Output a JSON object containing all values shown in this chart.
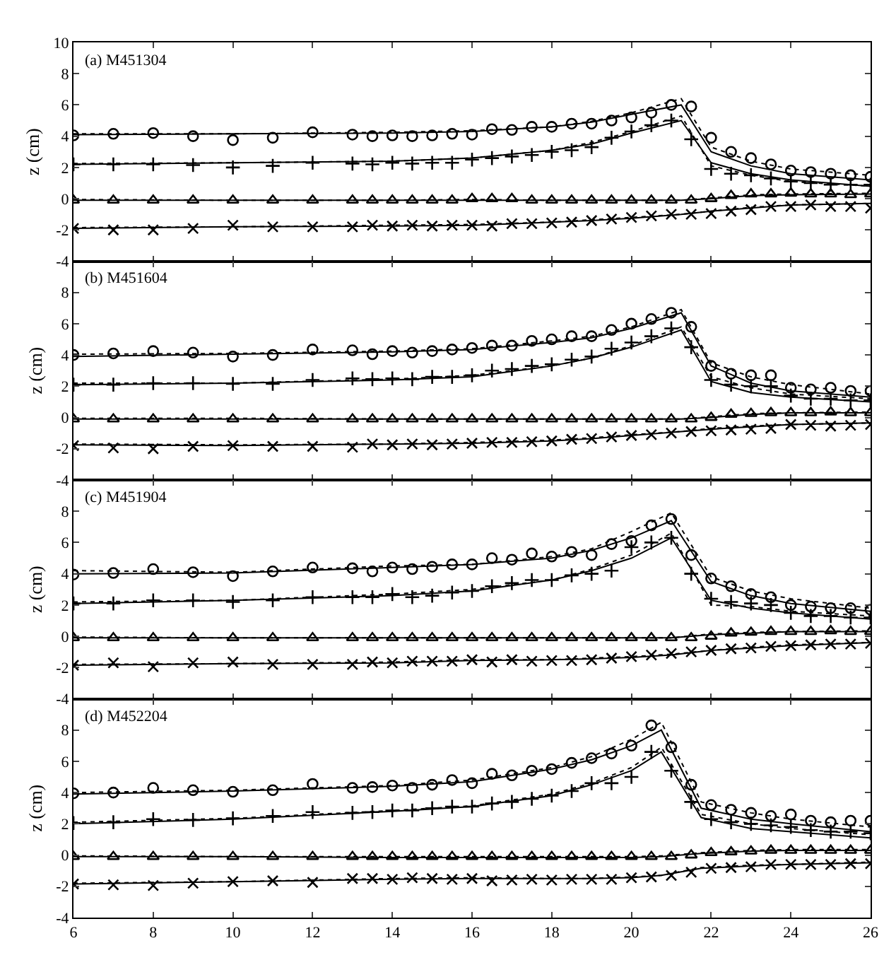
{
  "chart_data": [
    {
      "type": "scatter",
      "title": "(a) M451304",
      "ylabel": "z (cm)",
      "xlim": [
        6,
        26
      ],
      "xticks": [
        6,
        8,
        10,
        12,
        14,
        16,
        18,
        20,
        22,
        24,
        26
      ],
      "ylim": [
        -4,
        10
      ],
      "yticks": [
        -4,
        -2,
        0,
        2,
        4,
        6,
        8,
        10
      ],
      "tick_labels": "y",
      "x": [
        6,
        7,
        8,
        9,
        10,
        11,
        12,
        13,
        13.5,
        14,
        14.5,
        15,
        15.5,
        16,
        16.5,
        17,
        17.5,
        18,
        18.5,
        19,
        19.5,
        20,
        20.5,
        21,
        21.5,
        22,
        22.5,
        23,
        23.5,
        24,
        24.5,
        25,
        25.5,
        26
      ],
      "series": [
        {
          "type": "scatter",
          "marker": "circle",
          "color": "#000000",
          "values": [
            4.05,
            4.15,
            4.2,
            4.0,
            3.75,
            3.9,
            4.25,
            4.1,
            4.0,
            4.05,
            4.0,
            4.05,
            4.15,
            4.1,
            4.45,
            4.4,
            4.6,
            4.6,
            4.8,
            4.8,
            5.0,
            5.2,
            5.5,
            6.0,
            5.9,
            3.9,
            3.0,
            2.6,
            2.2,
            1.8,
            1.7,
            1.6,
            1.5,
            1.4
          ]
        },
        {
          "type": "scatter",
          "marker": "cross",
          "color": "#000000",
          "values": [
            2.2,
            2.2,
            2.2,
            2.15,
            2.0,
            2.1,
            2.3,
            2.25,
            2.2,
            2.3,
            2.25,
            2.3,
            2.3,
            2.5,
            2.6,
            2.7,
            2.8,
            3.0,
            3.1,
            3.3,
            3.9,
            4.3,
            4.7,
            5.0,
            3.8,
            1.9,
            1.6,
            1.5,
            1.3,
            1.1,
            1.0,
            0.9,
            0.9,
            0.9
          ]
        },
        {
          "type": "scatter",
          "marker": "triangle",
          "color": "#000000",
          "values": [
            -0.1,
            -0.1,
            -0.1,
            -0.1,
            -0.1,
            -0.1,
            -0.1,
            -0.1,
            -0.1,
            -0.1,
            -0.1,
            -0.1,
            -0.1,
            0.0,
            0.0,
            0.0,
            -0.1,
            -0.1,
            -0.1,
            -0.1,
            -0.1,
            -0.1,
            -0.1,
            -0.1,
            -0.1,
            0.0,
            0.2,
            0.3,
            0.3,
            0.35,
            0.3,
            0.3,
            0.25,
            0.3
          ]
        },
        {
          "type": "scatter",
          "marker": "x",
          "color": "#000000",
          "values": [
            -1.9,
            -2.0,
            -2.0,
            -1.9,
            -1.7,
            -1.8,
            -1.8,
            -1.8,
            -1.7,
            -1.75,
            -1.7,
            -1.75,
            -1.7,
            -1.7,
            -1.75,
            -1.6,
            -1.6,
            -1.55,
            -1.5,
            -1.4,
            -1.3,
            -1.2,
            -1.1,
            -1.0,
            -1.0,
            -0.95,
            -0.8,
            -0.7,
            -0.5,
            -0.5,
            -0.4,
            -0.5,
            -0.5,
            -0.6
          ]
        },
        {
          "type": "line",
          "line_style": "solid",
          "color": "#000000",
          "x": [
            6,
            10,
            14,
            16,
            18,
            19,
            20,
            21.25,
            22,
            23,
            24,
            26
          ],
          "values": [
            4.1,
            4.15,
            4.2,
            4.3,
            4.6,
            4.9,
            5.4,
            6.0,
            3.0,
            2.1,
            1.6,
            1.2
          ]
        },
        {
          "type": "line",
          "line_style": "dotted",
          "color": "#000000",
          "x": [
            6,
            10,
            14,
            16,
            18,
            19,
            20,
            21.25,
            22,
            23,
            24,
            26
          ],
          "values": [
            4.15,
            4.15,
            4.25,
            4.35,
            4.6,
            4.95,
            5.5,
            6.4,
            3.3,
            2.4,
            1.9,
            1.5
          ]
        },
        {
          "type": "line",
          "line_style": "solid",
          "color": "#000000",
          "x": [
            6,
            10,
            14,
            16,
            18,
            19,
            20,
            21.25,
            22,
            23,
            24,
            26
          ],
          "values": [
            2.2,
            2.3,
            2.4,
            2.6,
            3.1,
            3.5,
            4.2,
            5.0,
            2.3,
            1.6,
            1.2,
            0.8
          ]
        },
        {
          "type": "line",
          "line_style": "dotted",
          "color": "#000000",
          "x": [
            6,
            10,
            14,
            16,
            18,
            19,
            20,
            21.25,
            22,
            23,
            24,
            26
          ],
          "values": [
            2.25,
            2.3,
            2.4,
            2.6,
            3.1,
            3.6,
            4.3,
            5.3,
            2.1,
            1.5,
            1.1,
            0.8
          ]
        },
        {
          "type": "line",
          "line_style": "solid",
          "color": "#000000",
          "x": [
            6,
            10,
            14,
            16,
            18,
            19,
            20,
            21.25,
            22,
            23,
            24,
            26
          ],
          "values": [
            -0.1,
            -0.1,
            -0.1,
            -0.1,
            -0.1,
            -0.1,
            -0.1,
            -0.1,
            0.0,
            0.2,
            0.25,
            0.3
          ]
        },
        {
          "type": "line",
          "line_style": "dotted",
          "color": "#000000",
          "x": [
            6,
            10,
            14,
            16,
            18,
            19,
            20,
            21.25,
            22,
            23,
            24,
            26
          ],
          "values": [
            -0.05,
            -0.1,
            -0.1,
            -0.05,
            -0.1,
            -0.1,
            -0.1,
            -0.1,
            0.05,
            0.25,
            0.3,
            0.35
          ]
        },
        {
          "type": "line",
          "line_style": "solid",
          "color": "#000000",
          "x": [
            6,
            10,
            14,
            16,
            18,
            19,
            20,
            21.25,
            22,
            23,
            24,
            26
          ],
          "values": [
            -1.9,
            -1.8,
            -1.75,
            -1.7,
            -1.5,
            -1.4,
            -1.25,
            -1.0,
            -0.8,
            -0.6,
            -0.4,
            -0.3
          ]
        },
        {
          "type": "line",
          "line_style": "dotted",
          "color": "#000000",
          "x": [
            6,
            10,
            14,
            16,
            18,
            19,
            20,
            21.25,
            22,
            23,
            24,
            26
          ],
          "values": [
            -1.85,
            -1.8,
            -1.7,
            -1.65,
            -1.5,
            -1.35,
            -1.2,
            -1.0,
            -0.8,
            -0.55,
            -0.4,
            -0.3
          ]
        }
      ]
    },
    {
      "type": "scatter",
      "title": "(b) M451604",
      "ylabel": "z (cm)",
      "xlim": [
        6,
        26
      ],
      "xticks": [
        6,
        8,
        10,
        12,
        14,
        16,
        18,
        20,
        22,
        24,
        26
      ],
      "ylim": [
        -4,
        10
      ],
      "yticks": [
        -4,
        -2,
        0,
        2,
        4,
        6,
        8
      ],
      "tick_labels": "y",
      "x": [
        6,
        7,
        8,
        9,
        10,
        11,
        12,
        13,
        13.5,
        14,
        14.5,
        15,
        15.5,
        16,
        16.5,
        17,
        17.5,
        18,
        18.5,
        19,
        19.5,
        20,
        20.5,
        21,
        21.5,
        22,
        22.5,
        23,
        23.5,
        24,
        24.5,
        25,
        25.5,
        26
      ],
      "series": [
        {
          "type": "scatter",
          "marker": "circle",
          "color": "#000000",
          "values": [
            4.0,
            4.1,
            4.25,
            4.15,
            3.9,
            4.0,
            4.35,
            4.3,
            4.05,
            4.25,
            4.15,
            4.25,
            4.35,
            4.45,
            4.6,
            4.6,
            4.9,
            5.0,
            5.2,
            5.2,
            5.6,
            6.0,
            6.3,
            6.7,
            5.8,
            3.3,
            2.8,
            2.7,
            2.7,
            1.9,
            1.8,
            1.9,
            1.7,
            1.7
          ]
        },
        {
          "type": "scatter",
          "marker": "cross",
          "color": "#000000",
          "values": [
            2.1,
            2.1,
            2.2,
            2.2,
            2.15,
            2.15,
            2.4,
            2.5,
            2.45,
            2.5,
            2.45,
            2.6,
            2.6,
            2.7,
            3.0,
            3.1,
            3.3,
            3.4,
            3.7,
            3.9,
            4.4,
            4.8,
            5.2,
            5.7,
            4.5,
            2.4,
            2.1,
            2.0,
            2.0,
            1.4,
            1.2,
            1.2,
            1.1,
            1.1
          ]
        },
        {
          "type": "scatter",
          "marker": "triangle",
          "color": "#000000",
          "values": [
            -0.1,
            -0.1,
            -0.1,
            -0.1,
            -0.1,
            -0.1,
            -0.1,
            -0.1,
            -0.1,
            -0.1,
            -0.1,
            -0.1,
            -0.1,
            -0.1,
            -0.1,
            -0.1,
            -0.1,
            -0.1,
            -0.1,
            -0.1,
            -0.1,
            -0.1,
            -0.1,
            -0.1,
            -0.1,
            0.0,
            0.2,
            0.25,
            0.3,
            0.3,
            0.3,
            0.35,
            0.3,
            0.3
          ]
        },
        {
          "type": "scatter",
          "marker": "x",
          "color": "#000000",
          "values": [
            -1.8,
            -1.95,
            -2.0,
            -1.85,
            -1.8,
            -1.85,
            -1.85,
            -1.9,
            -1.7,
            -1.75,
            -1.7,
            -1.75,
            -1.7,
            -1.65,
            -1.6,
            -1.6,
            -1.55,
            -1.5,
            -1.4,
            -1.35,
            -1.25,
            -1.15,
            -1.1,
            -1.0,
            -0.9,
            -0.85,
            -0.8,
            -0.75,
            -0.7,
            -0.45,
            -0.5,
            -0.55,
            -0.5,
            -0.45
          ]
        },
        {
          "type": "line",
          "line_style": "solid",
          "color": "#000000",
          "x": [
            6,
            10,
            14,
            16,
            18,
            19,
            20,
            21.25,
            22,
            23,
            24,
            26
          ],
          "values": [
            3.9,
            4.05,
            4.2,
            4.35,
            4.8,
            5.1,
            5.7,
            6.7,
            3.3,
            2.2,
            1.7,
            1.3
          ]
        },
        {
          "type": "line",
          "line_style": "dotted",
          "color": "#000000",
          "x": [
            6,
            10,
            14,
            16,
            18,
            19,
            20,
            21.25,
            22,
            23,
            24,
            26
          ],
          "values": [
            4.05,
            4.1,
            4.25,
            4.4,
            4.9,
            5.2,
            5.8,
            6.9,
            3.5,
            2.6,
            2.1,
            1.5
          ]
        },
        {
          "type": "line",
          "line_style": "solid",
          "color": "#000000",
          "x": [
            6,
            10,
            14,
            16,
            18,
            19,
            20,
            21.25,
            22,
            23,
            24,
            26
          ],
          "values": [
            2.1,
            2.2,
            2.4,
            2.6,
            3.3,
            3.8,
            4.5,
            5.6,
            2.3,
            1.6,
            1.3,
            1.0
          ]
        },
        {
          "type": "line",
          "line_style": "dotted",
          "color": "#000000",
          "x": [
            6,
            10,
            14,
            16,
            18,
            19,
            20,
            21.25,
            22,
            23,
            24,
            26
          ],
          "values": [
            2.2,
            2.2,
            2.45,
            2.7,
            3.3,
            3.8,
            4.6,
            5.8,
            2.6,
            1.9,
            1.5,
            1.2
          ]
        },
        {
          "type": "line",
          "line_style": "solid",
          "color": "#000000",
          "x": [
            6,
            10,
            14,
            16,
            18,
            19,
            20,
            21.25,
            22,
            23,
            24,
            26
          ],
          "values": [
            -0.1,
            -0.1,
            -0.1,
            -0.1,
            -0.1,
            -0.1,
            -0.1,
            -0.1,
            0.0,
            0.2,
            0.3,
            0.3
          ]
        },
        {
          "type": "line",
          "line_style": "dotted",
          "color": "#000000",
          "x": [
            6,
            10,
            14,
            16,
            18,
            19,
            20,
            21.25,
            22,
            23,
            24,
            26
          ],
          "values": [
            -0.05,
            -0.05,
            -0.1,
            -0.1,
            -0.1,
            -0.1,
            -0.1,
            -0.1,
            0.05,
            0.25,
            0.3,
            0.35
          ]
        },
        {
          "type": "line",
          "line_style": "solid",
          "color": "#000000",
          "x": [
            6,
            10,
            14,
            16,
            18,
            19,
            20,
            21.25,
            22,
            23,
            24,
            26
          ],
          "values": [
            -1.75,
            -1.8,
            -1.7,
            -1.65,
            -1.5,
            -1.35,
            -1.15,
            -0.9,
            -0.75,
            -0.6,
            -0.45,
            -0.35
          ]
        },
        {
          "type": "line",
          "line_style": "dotted",
          "color": "#000000",
          "x": [
            6,
            10,
            14,
            16,
            18,
            19,
            20,
            21.25,
            22,
            23,
            24,
            26
          ],
          "values": [
            -1.7,
            -1.75,
            -1.7,
            -1.6,
            -1.45,
            -1.3,
            -1.1,
            -0.9,
            -0.7,
            -0.55,
            -0.45,
            -0.35
          ]
        }
      ]
    },
    {
      "type": "scatter",
      "title": "(c) M451904",
      "ylabel": "z (cm)",
      "xlim": [
        6,
        26
      ],
      "xticks": [
        6,
        8,
        10,
        12,
        14,
        16,
        18,
        20,
        22,
        24,
        26
      ],
      "ylim": [
        -4,
        10
      ],
      "yticks": [
        -4,
        -2,
        0,
        2,
        4,
        6,
        8
      ],
      "tick_labels": "y",
      "x": [
        6,
        7,
        8,
        9,
        10,
        11,
        12,
        13,
        13.5,
        14,
        14.5,
        15,
        15.5,
        16,
        16.5,
        17,
        17.5,
        18,
        18.5,
        19,
        19.5,
        20,
        20.5,
        21,
        21.5,
        22,
        22.5,
        23,
        23.5,
        24,
        24.5,
        25,
        25.5,
        26
      ],
      "series": [
        {
          "type": "scatter",
          "marker": "circle",
          "color": "#000000",
          "values": [
            3.95,
            4.05,
            4.3,
            4.1,
            3.85,
            4.15,
            4.4,
            4.35,
            4.15,
            4.4,
            4.3,
            4.45,
            4.6,
            4.6,
            5.0,
            4.9,
            5.3,
            5.1,
            5.4,
            5.2,
            5.9,
            6.1,
            7.1,
            7.5,
            5.2,
            3.7,
            3.2,
            2.7,
            2.5,
            2.0,
            1.9,
            1.8,
            1.8,
            1.7
          ]
        },
        {
          "type": "scatter",
          "marker": "cross",
          "color": "#000000",
          "values": [
            2.1,
            2.1,
            2.3,
            2.3,
            2.2,
            2.3,
            2.5,
            2.5,
            2.5,
            2.7,
            2.5,
            2.6,
            2.8,
            2.9,
            3.2,
            3.4,
            3.6,
            3.6,
            3.9,
            4.0,
            4.2,
            5.7,
            6.0,
            6.3,
            4.0,
            2.4,
            2.2,
            2.1,
            2.0,
            1.5,
            1.3,
            1.3,
            1.2,
            1.2
          ]
        },
        {
          "type": "scatter",
          "marker": "triangle",
          "color": "#000000",
          "values": [
            -0.1,
            -0.1,
            -0.1,
            -0.1,
            -0.1,
            -0.1,
            -0.1,
            -0.1,
            -0.1,
            -0.1,
            -0.1,
            -0.1,
            -0.1,
            -0.1,
            -0.1,
            -0.1,
            -0.1,
            -0.1,
            -0.1,
            -0.1,
            -0.1,
            -0.1,
            -0.1,
            -0.1,
            -0.1,
            0.0,
            0.2,
            0.25,
            0.3,
            0.3,
            0.3,
            0.35,
            0.3,
            0.3
          ]
        },
        {
          "type": "scatter",
          "marker": "x",
          "color": "#000000",
          "values": [
            -1.85,
            -1.7,
            -1.95,
            -1.7,
            -1.65,
            -1.8,
            -1.8,
            -1.8,
            -1.65,
            -1.7,
            -1.6,
            -1.6,
            -1.6,
            -1.5,
            -1.65,
            -1.5,
            -1.6,
            -1.55,
            -1.55,
            -1.5,
            -1.4,
            -1.3,
            -1.2,
            -1.1,
            -1.0,
            -0.9,
            -0.8,
            -0.75,
            -0.65,
            -0.6,
            -0.55,
            -0.5,
            -0.5,
            -0.45
          ]
        },
        {
          "type": "line",
          "line_style": "solid",
          "color": "#000000",
          "x": [
            6,
            10,
            14,
            16,
            18,
            19,
            20,
            21,
            22,
            23,
            24,
            26
          ],
          "values": [
            4.0,
            4.05,
            4.4,
            4.6,
            5.0,
            5.5,
            6.3,
            7.4,
            3.5,
            2.6,
            2.1,
            1.6
          ]
        },
        {
          "type": "line",
          "line_style": "dotted",
          "color": "#000000",
          "x": [
            6,
            10,
            14,
            16,
            18,
            19,
            20,
            21,
            22,
            23,
            24,
            26
          ],
          "values": [
            4.2,
            4.1,
            4.5,
            4.6,
            5.1,
            5.6,
            6.7,
            7.9,
            3.8,
            2.9,
            2.4,
            1.8
          ]
        },
        {
          "type": "line",
          "line_style": "solid",
          "color": "#000000",
          "x": [
            6,
            10,
            14,
            16,
            18,
            19,
            20,
            21,
            22,
            23,
            24,
            26
          ],
          "values": [
            2.1,
            2.3,
            2.6,
            2.9,
            3.6,
            4.2,
            5.0,
            6.3,
            2.3,
            1.8,
            1.5,
            1.1
          ]
        },
        {
          "type": "line",
          "line_style": "dotted",
          "color": "#000000",
          "x": [
            6,
            10,
            14,
            16,
            18,
            19,
            20,
            21,
            22,
            23,
            24,
            26
          ],
          "values": [
            2.2,
            2.3,
            2.7,
            3.0,
            3.6,
            4.3,
            5.2,
            6.6,
            2.0,
            1.9,
            1.6,
            1.3
          ]
        },
        {
          "type": "line",
          "line_style": "solid",
          "color": "#000000",
          "x": [
            6,
            10,
            14,
            16,
            18,
            19,
            20,
            21,
            22,
            23,
            24,
            26
          ],
          "values": [
            -0.1,
            -0.1,
            -0.1,
            -0.1,
            -0.1,
            -0.1,
            -0.1,
            -0.1,
            0.1,
            0.2,
            0.3,
            0.3
          ]
        },
        {
          "type": "line",
          "line_style": "dotted",
          "color": "#000000",
          "x": [
            6,
            10,
            14,
            16,
            18,
            19,
            20,
            21,
            22,
            23,
            24,
            26
          ],
          "values": [
            -0.05,
            -0.1,
            -0.1,
            -0.1,
            -0.1,
            -0.1,
            -0.1,
            -0.1,
            0.15,
            0.25,
            0.3,
            0.35
          ]
        },
        {
          "type": "line",
          "line_style": "solid",
          "color": "#000000",
          "x": [
            6,
            10,
            14,
            16,
            18,
            19,
            20,
            21,
            22,
            23,
            24,
            26
          ],
          "values": [
            -1.85,
            -1.75,
            -1.7,
            -1.55,
            -1.5,
            -1.45,
            -1.35,
            -1.2,
            -0.9,
            -0.75,
            -0.6,
            -0.4
          ]
        },
        {
          "type": "line",
          "line_style": "dotted",
          "color": "#000000",
          "x": [
            6,
            10,
            14,
            16,
            18,
            19,
            20,
            21,
            22,
            23,
            24,
            26
          ],
          "values": [
            -1.8,
            -1.75,
            -1.65,
            -1.5,
            -1.5,
            -1.4,
            -1.3,
            -1.15,
            -0.9,
            -0.7,
            -0.55,
            -0.4
          ]
        }
      ]
    },
    {
      "type": "scatter",
      "title": "(d) M452204",
      "ylabel": "z (cm)",
      "xlim": [
        6,
        26
      ],
      "xticks": [
        6,
        8,
        10,
        12,
        14,
        16,
        18,
        20,
        22,
        24,
        26
      ],
      "ylim": [
        -4,
        10
      ],
      "yticks": [
        -4,
        -2,
        0,
        2,
        4,
        6,
        8
      ],
      "x": [
        6,
        7,
        8,
        9,
        10,
        11,
        12,
        13,
        13.5,
        14,
        14.5,
        15,
        15.5,
        16,
        16.5,
        17,
        17.5,
        18,
        18.5,
        19,
        19.5,
        20,
        20.5,
        21,
        21.5,
        22,
        22.5,
        23,
        23.5,
        24,
        24.5,
        25,
        25.5,
        26
      ],
      "series": [
        {
          "type": "scatter",
          "marker": "circle",
          "color": "#000000",
          "values": [
            3.95,
            4.0,
            4.3,
            4.15,
            4.05,
            4.15,
            4.55,
            4.3,
            4.35,
            4.45,
            4.3,
            4.5,
            4.8,
            4.6,
            5.2,
            5.1,
            5.4,
            5.5,
            5.9,
            6.2,
            6.5,
            7.0,
            8.3,
            6.9,
            4.5,
            3.2,
            2.9,
            2.7,
            2.5,
            2.6,
            2.2,
            2.1,
            2.2,
            2.2
          ]
        },
        {
          "type": "scatter",
          "marker": "cross",
          "color": "#000000",
          "values": [
            2.05,
            2.1,
            2.3,
            2.25,
            2.35,
            2.5,
            2.75,
            2.7,
            2.75,
            2.85,
            2.85,
            3.0,
            3.1,
            3.1,
            3.3,
            3.4,
            3.6,
            3.8,
            4.1,
            4.6,
            4.6,
            5.0,
            6.6,
            5.4,
            3.4,
            2.3,
            2.1,
            2.0,
            1.9,
            1.8,
            1.6,
            1.5,
            1.5,
            1.4
          ]
        },
        {
          "type": "scatter",
          "marker": "triangle",
          "color": "#000000",
          "values": [
            -0.1,
            -0.1,
            -0.1,
            -0.1,
            -0.1,
            -0.1,
            -0.1,
            -0.1,
            -0.1,
            -0.1,
            -0.1,
            -0.1,
            -0.1,
            -0.1,
            -0.1,
            -0.1,
            -0.1,
            -0.1,
            -0.1,
            -0.1,
            -0.1,
            -0.1,
            -0.1,
            -0.1,
            0.0,
            0.15,
            0.2,
            0.25,
            0.3,
            0.3,
            0.3,
            0.3,
            0.3,
            0.3
          ]
        },
        {
          "type": "scatter",
          "marker": "x",
          "color": "#000000",
          "values": [
            -1.85,
            -1.9,
            -1.95,
            -1.8,
            -1.7,
            -1.65,
            -1.75,
            -1.5,
            -1.5,
            -1.55,
            -1.45,
            -1.5,
            -1.55,
            -1.5,
            -1.65,
            -1.6,
            -1.55,
            -1.6,
            -1.55,
            -1.55,
            -1.55,
            -1.45,
            -1.4,
            -1.3,
            -1.1,
            -0.85,
            -0.8,
            -0.75,
            -0.6,
            -0.6,
            -0.6,
            -0.6,
            -0.55,
            -0.55
          ]
        },
        {
          "type": "line",
          "line_style": "solid",
          "color": "#000000",
          "x": [
            6,
            10,
            14,
            16,
            18,
            19,
            20,
            20.75,
            21.75,
            23,
            24,
            26
          ],
          "values": [
            3.9,
            4.1,
            4.4,
            4.7,
            5.5,
            6.1,
            7.0,
            8.0,
            3.0,
            2.3,
            2.0,
            1.5
          ]
        },
        {
          "type": "line",
          "line_style": "dotted",
          "color": "#000000",
          "x": [
            6,
            10,
            14,
            16,
            18,
            19,
            20,
            20.75,
            21.75,
            23,
            24,
            26
          ],
          "values": [
            4.0,
            4.15,
            4.45,
            4.8,
            5.6,
            6.3,
            7.4,
            8.5,
            3.4,
            2.7,
            2.3,
            1.8
          ]
        },
        {
          "type": "line",
          "line_style": "solid",
          "color": "#000000",
          "x": [
            6,
            10,
            14,
            16,
            18,
            19,
            20,
            20.75,
            21.75,
            23,
            24,
            26
          ],
          "values": [
            2.0,
            2.3,
            2.8,
            3.1,
            3.8,
            4.5,
            5.4,
            6.6,
            2.4,
            1.7,
            1.5,
            1.1
          ]
        },
        {
          "type": "line",
          "line_style": "dotted",
          "color": "#000000",
          "x": [
            6,
            10,
            14,
            16,
            18,
            19,
            20,
            20.75,
            21.75,
            23,
            24,
            26
          ],
          "values": [
            2.1,
            2.35,
            2.85,
            3.15,
            3.9,
            4.6,
            5.6,
            6.9,
            2.6,
            2.0,
            1.7,
            1.3
          ]
        },
        {
          "type": "line",
          "line_style": "solid",
          "color": "#000000",
          "x": [
            6,
            10,
            14,
            16,
            18,
            19,
            20,
            20.75,
            21.75,
            23,
            24,
            26
          ],
          "values": [
            -0.1,
            -0.1,
            -0.15,
            -0.15,
            -0.15,
            -0.15,
            -0.15,
            -0.1,
            0.1,
            0.25,
            0.3,
            0.3
          ]
        },
        {
          "type": "line",
          "line_style": "dotted",
          "color": "#000000",
          "x": [
            6,
            10,
            14,
            16,
            18,
            19,
            20,
            20.75,
            21.75,
            23,
            24,
            26
          ],
          "values": [
            -0.05,
            -0.1,
            -0.1,
            -0.1,
            -0.1,
            -0.1,
            -0.1,
            -0.05,
            0.15,
            0.3,
            0.35,
            0.35
          ]
        },
        {
          "type": "line",
          "line_style": "solid",
          "color": "#000000",
          "x": [
            6,
            10,
            14,
            16,
            18,
            19,
            20,
            20.75,
            21.75,
            23,
            24,
            26
          ],
          "values": [
            -1.85,
            -1.7,
            -1.55,
            -1.5,
            -1.5,
            -1.5,
            -1.45,
            -1.3,
            -0.85,
            -0.7,
            -0.6,
            -0.5
          ]
        },
        {
          "type": "line",
          "line_style": "dotted",
          "color": "#000000",
          "x": [
            6,
            10,
            14,
            16,
            18,
            19,
            20,
            20.75,
            21.75,
            23,
            24,
            26
          ],
          "values": [
            -1.8,
            -1.7,
            -1.5,
            -1.45,
            -1.5,
            -1.5,
            -1.4,
            -1.3,
            -0.8,
            -0.65,
            -0.6,
            -0.45
          ]
        }
      ]
    }
  ]
}
